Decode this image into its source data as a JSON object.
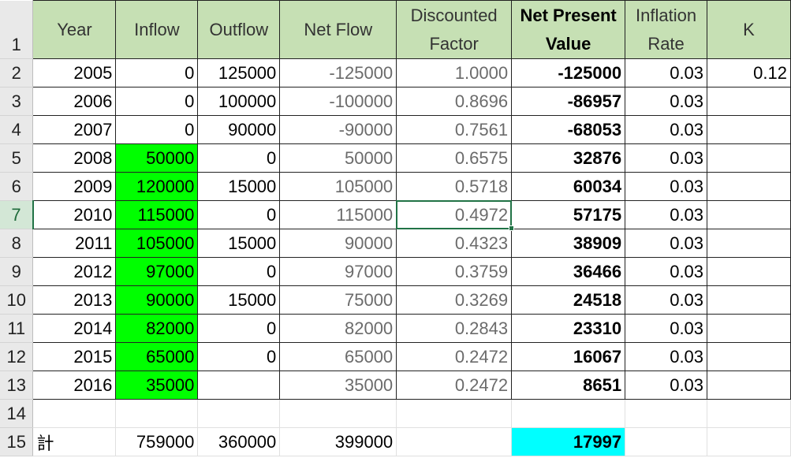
{
  "headers": {
    "year": "Year",
    "inflow": "Inflow",
    "outflow": "Outflow",
    "net_flow": "Net Flow",
    "discounted_factor_1": "Discounted",
    "discounted_factor_2": "Factor",
    "npv_1": "Net Present",
    "npv_2": "Value",
    "inflation_1": "Inflation",
    "inflation_2": "Rate",
    "k": "K"
  },
  "row_numbers": [
    "1",
    "2",
    "3",
    "4",
    "5",
    "6",
    "7",
    "8",
    "9",
    "10",
    "11",
    "12",
    "13",
    "14",
    "15"
  ],
  "rows": [
    {
      "year": "2005",
      "inflow": "0",
      "outflow": "125000",
      "net": "-125000",
      "factor": "1.0000",
      "npv": "-125000",
      "inflation": "0.03",
      "k": "0.12"
    },
    {
      "year": "2006",
      "inflow": "0",
      "outflow": "100000",
      "net": "-100000",
      "factor": "0.8696",
      "npv": "-86957",
      "inflation": "0.03",
      "k": ""
    },
    {
      "year": "2007",
      "inflow": "0",
      "outflow": "90000",
      "net": "-90000",
      "factor": "0.7561",
      "npv": "-68053",
      "inflation": "0.03",
      "k": ""
    },
    {
      "year": "2008",
      "inflow": "50000",
      "outflow": "0",
      "net": "50000",
      "factor": "0.6575",
      "npv": "32876",
      "inflation": "0.03",
      "k": ""
    },
    {
      "year": "2009",
      "inflow": "120000",
      "outflow": "15000",
      "net": "105000",
      "factor": "0.5718",
      "npv": "60034",
      "inflation": "0.03",
      "k": ""
    },
    {
      "year": "2010",
      "inflow": "115000",
      "outflow": "0",
      "net": "115000",
      "factor": "0.4972",
      "npv": "57175",
      "inflation": "0.03",
      "k": ""
    },
    {
      "year": "2011",
      "inflow": "105000",
      "outflow": "15000",
      "net": "90000",
      "factor": "0.4323",
      "npv": "38909",
      "inflation": "0.03",
      "k": ""
    },
    {
      "year": "2012",
      "inflow": "97000",
      "outflow": "0",
      "net": "97000",
      "factor": "0.3759",
      "npv": "36466",
      "inflation": "0.03",
      "k": ""
    },
    {
      "year": "2013",
      "inflow": "90000",
      "outflow": "15000",
      "net": "75000",
      "factor": "0.3269",
      "npv": "24518",
      "inflation": "0.03",
      "k": ""
    },
    {
      "year": "2014",
      "inflow": "82000",
      "outflow": "0",
      "net": "82000",
      "factor": "0.2843",
      "npv": "23310",
      "inflation": "0.03",
      "k": ""
    },
    {
      "year": "2015",
      "inflow": "65000",
      "outflow": "0",
      "net": "65000",
      "factor": "0.2472",
      "npv": "16067",
      "inflation": "0.03",
      "k": ""
    },
    {
      "year": "2016",
      "inflow": "35000",
      "outflow": "",
      "net": "35000",
      "factor": "0.2472",
      "npv": "8651",
      "inflation": "0.03",
      "k": ""
    }
  ],
  "totals": {
    "label": "計",
    "inflow": "759000",
    "outflow": "360000",
    "net": "399000",
    "npv": "17997"
  },
  "colors": {
    "header_fill": "#c6e0b4",
    "inflow_highlight": "#00ff00",
    "total_npv_highlight": "#00ffff",
    "selection": "#217346"
  },
  "selected_cell": "E7"
}
